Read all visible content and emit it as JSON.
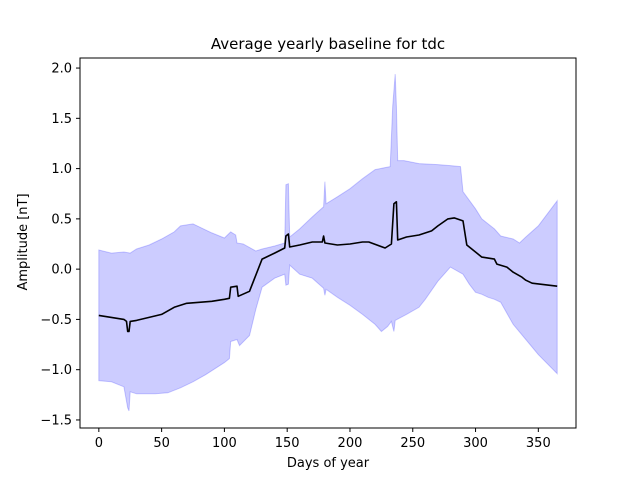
{
  "chart_data": {
    "type": "area",
    "title": "Average yearly baseline for tdc",
    "xlabel": "Days of year",
    "ylabel": "Amplitude [nT]",
    "xlim": [
      -15,
      380
    ],
    "ylim": [
      -1.58,
      2.1
    ],
    "xticks": [
      0,
      50,
      100,
      150,
      200,
      250,
      300,
      350
    ],
    "yticks": [
      -1.5,
      -1.0,
      -0.5,
      0.0,
      0.5,
      1.0,
      1.5,
      2.0
    ],
    "ytick_labels": [
      "−1.5",
      "−1.0",
      "−0.5",
      "0.0",
      "0.5",
      "1.0",
      "1.5",
      "2.0"
    ],
    "grid": false,
    "colors": {
      "line": "#000000",
      "band": "#0000ff",
      "band_opacity": 0.2
    },
    "series": [
      {
        "kind": "line",
        "points": [
          [
            0,
            -0.46
          ],
          [
            10,
            -0.48
          ],
          [
            20,
            -0.5
          ],
          [
            22,
            -0.52
          ],
          [
            23,
            -0.62
          ],
          [
            24,
            -0.62
          ],
          [
            25,
            -0.52
          ],
          [
            30,
            -0.51
          ],
          [
            40,
            -0.48
          ],
          [
            50,
            -0.45
          ],
          [
            60,
            -0.38
          ],
          [
            70,
            -0.34
          ],
          [
            80,
            -0.33
          ],
          [
            90,
            -0.32
          ],
          [
            100,
            -0.3
          ],
          [
            104,
            -0.29
          ],
          [
            105,
            -0.18
          ],
          [
            110,
            -0.17
          ],
          [
            111,
            -0.27
          ],
          [
            120,
            -0.22
          ],
          [
            130,
            0.1
          ],
          [
            140,
            0.16
          ],
          [
            148,
            0.21
          ],
          [
            149,
            0.33
          ],
          [
            151,
            0.35
          ],
          [
            152,
            0.22
          ],
          [
            160,
            0.24
          ],
          [
            170,
            0.27
          ],
          [
            178,
            0.27
          ],
          [
            179,
            0.33
          ],
          [
            180,
            0.26
          ],
          [
            190,
            0.24
          ],
          [
            200,
            0.25
          ],
          [
            210,
            0.27
          ],
          [
            215,
            0.27
          ],
          [
            228,
            0.21
          ],
          [
            233,
            0.25
          ],
          [
            235,
            0.65
          ],
          [
            237,
            0.67
          ],
          [
            238,
            0.29
          ],
          [
            245,
            0.32
          ],
          [
            255,
            0.34
          ],
          [
            265,
            0.38
          ],
          [
            270,
            0.43
          ],
          [
            278,
            0.5
          ],
          [
            283,
            0.51
          ],
          [
            290,
            0.48
          ],
          [
            293,
            0.24
          ],
          [
            300,
            0.17
          ],
          [
            305,
            0.12
          ],
          [
            310,
            0.11
          ],
          [
            315,
            0.1
          ],
          [
            317,
            0.05
          ],
          [
            325,
            0.02
          ],
          [
            330,
            -0.03
          ],
          [
            337,
            -0.08
          ],
          [
            340,
            -0.11
          ],
          [
            345,
            -0.14
          ],
          [
            365,
            -0.17
          ]
        ]
      },
      {
        "kind": "band",
        "upper": [
          [
            0,
            0.19
          ],
          [
            10,
            0.16
          ],
          [
            20,
            0.17
          ],
          [
            25,
            0.16
          ],
          [
            30,
            0.2
          ],
          [
            40,
            0.24
          ],
          [
            50,
            0.3
          ],
          [
            60,
            0.37
          ],
          [
            65,
            0.43
          ],
          [
            75,
            0.45
          ],
          [
            80,
            0.42
          ],
          [
            90,
            0.36
          ],
          [
            100,
            0.31
          ],
          [
            105,
            0.37
          ],
          [
            109,
            0.34
          ],
          [
            110,
            0.26
          ],
          [
            115,
            0.25
          ],
          [
            125,
            0.18
          ],
          [
            130,
            0.2
          ],
          [
            140,
            0.23
          ],
          [
            148,
            0.26
          ],
          [
            149,
            0.84
          ],
          [
            151,
            0.85
          ],
          [
            152,
            0.32
          ],
          [
            160,
            0.4
          ],
          [
            170,
            0.52
          ],
          [
            179,
            0.62
          ],
          [
            180,
            0.87
          ],
          [
            181,
            0.65
          ],
          [
            190,
            0.72
          ],
          [
            200,
            0.8
          ],
          [
            210,
            0.9
          ],
          [
            220,
            0.99
          ],
          [
            232,
            1.02
          ],
          [
            234,
            1.62
          ],
          [
            236,
            1.94
          ],
          [
            237,
            1.62
          ],
          [
            238,
            1.08
          ],
          [
            243,
            1.08
          ],
          [
            255,
            1.05
          ],
          [
            270,
            1.04
          ],
          [
            280,
            1.03
          ],
          [
            288,
            1.02
          ],
          [
            290,
            0.77
          ],
          [
            300,
            0.6
          ],
          [
            305,
            0.5
          ],
          [
            315,
            0.4
          ],
          [
            320,
            0.33
          ],
          [
            330,
            0.3
          ],
          [
            335,
            0.26
          ],
          [
            340,
            0.32
          ],
          [
            350,
            0.43
          ],
          [
            365,
            0.68
          ]
        ],
        "lower": [
          [
            0,
            -1.11
          ],
          [
            10,
            -1.12
          ],
          [
            20,
            -1.17
          ],
          [
            23,
            -1.38
          ],
          [
            24,
            -1.41
          ],
          [
            25,
            -1.22
          ],
          [
            30,
            -1.24
          ],
          [
            45,
            -1.24
          ],
          [
            55,
            -1.23
          ],
          [
            65,
            -1.18
          ],
          [
            75,
            -1.12
          ],
          [
            85,
            -1.05
          ],
          [
            100,
            -0.93
          ],
          [
            104,
            -0.89
          ],
          [
            105,
            -0.72
          ],
          [
            110,
            -0.7
          ],
          [
            112,
            -0.76
          ],
          [
            120,
            -0.66
          ],
          [
            125,
            -0.4
          ],
          [
            130,
            -0.18
          ],
          [
            140,
            -0.09
          ],
          [
            148,
            -0.05
          ],
          [
            149,
            -0.16
          ],
          [
            151,
            -0.15
          ],
          [
            152,
            0.04
          ],
          [
            160,
            -0.05
          ],
          [
            170,
            -0.09
          ],
          [
            179,
            -0.19
          ],
          [
            180,
            -0.26
          ],
          [
            181,
            -0.2
          ],
          [
            190,
            -0.28
          ],
          [
            200,
            -0.36
          ],
          [
            210,
            -0.45
          ],
          [
            220,
            -0.55
          ],
          [
            225,
            -0.62
          ],
          [
            230,
            -0.57
          ],
          [
            233,
            -0.52
          ],
          [
            235,
            -0.62
          ],
          [
            236,
            -0.51
          ],
          [
            245,
            -0.45
          ],
          [
            255,
            -0.38
          ],
          [
            260,
            -0.3
          ],
          [
            270,
            -0.12
          ],
          [
            280,
            0.02
          ],
          [
            290,
            -0.05
          ],
          [
            295,
            -0.15
          ],
          [
            300,
            -0.23
          ],
          [
            305,
            -0.25
          ],
          [
            310,
            -0.28
          ],
          [
            315,
            -0.3
          ],
          [
            320,
            -0.33
          ],
          [
            330,
            -0.55
          ],
          [
            340,
            -0.7
          ],
          [
            350,
            -0.85
          ],
          [
            365,
            -1.04
          ]
        ]
      }
    ]
  }
}
